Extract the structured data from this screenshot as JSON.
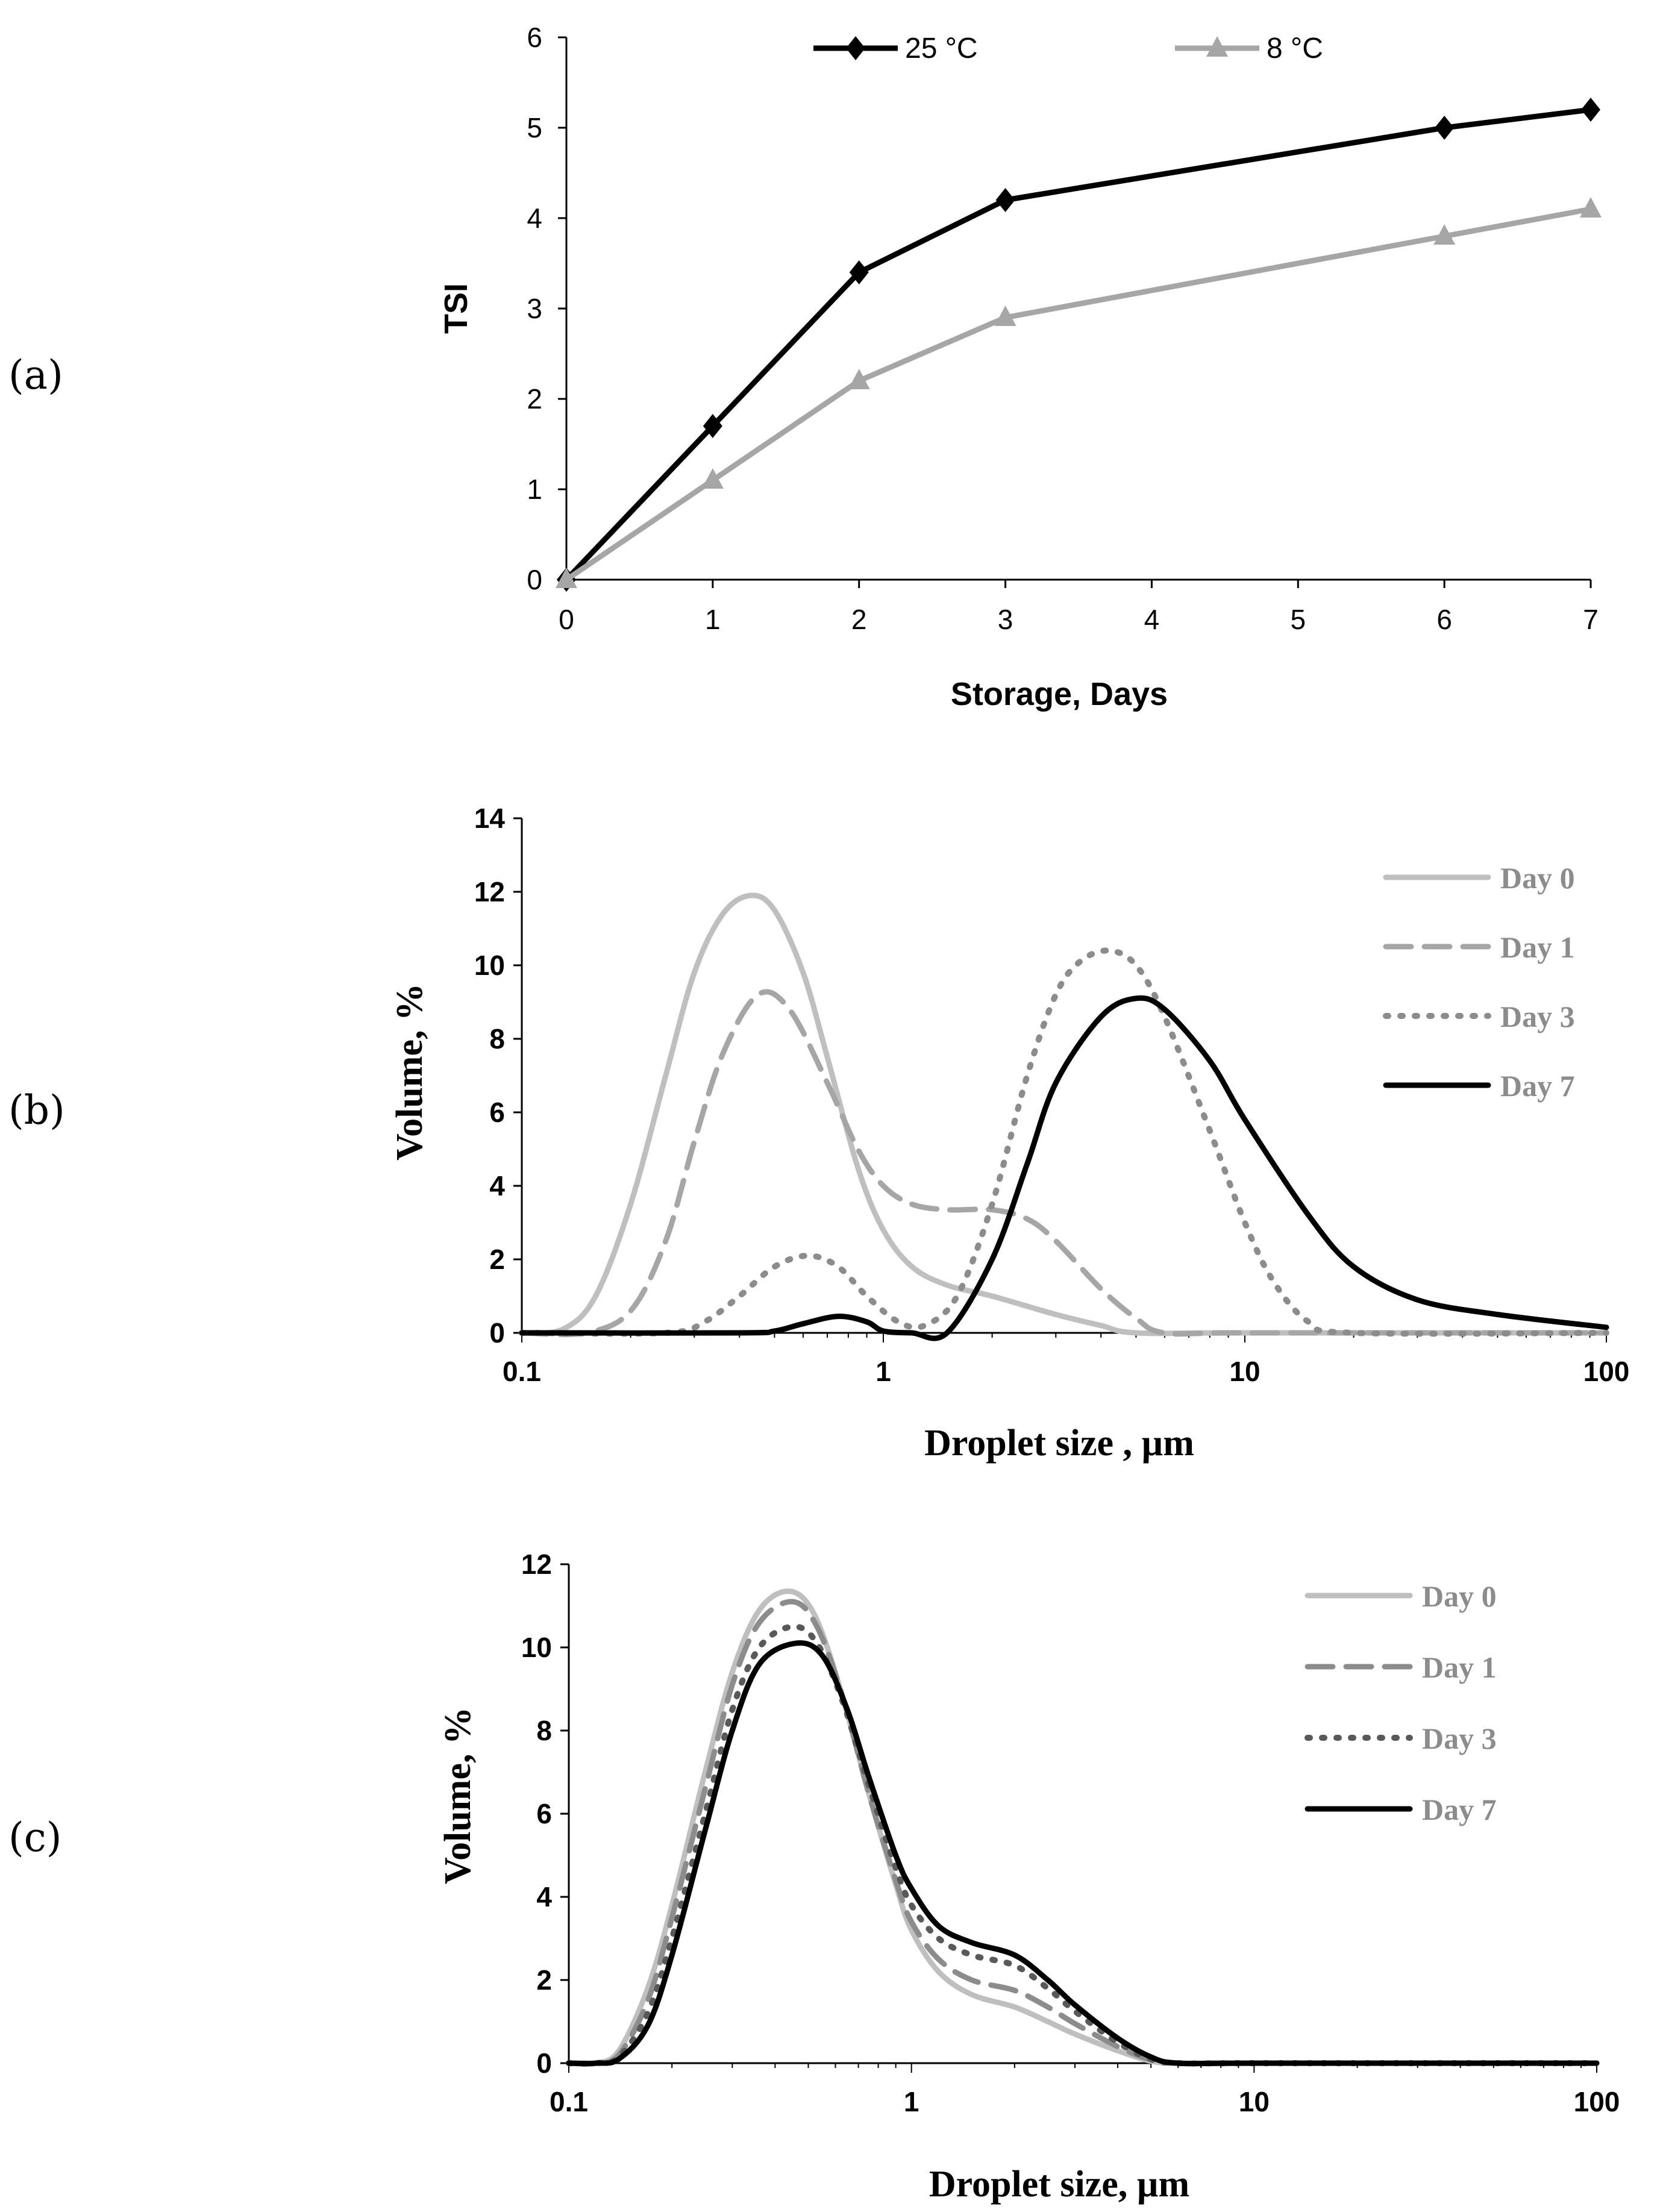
{
  "panels": [
    {
      "label": "(a)",
      "chart_data": {
        "type": "line",
        "title": "",
        "xlabel": "Storage, Days",
        "ylabel": "TSI",
        "x_ticks": [
          0,
          1,
          2,
          3,
          4,
          5,
          6,
          7
        ],
        "y_ticks": [
          0,
          1,
          2,
          3,
          4,
          5,
          6
        ],
        "ylim": [
          0,
          6
        ],
        "grid": false,
        "legend_position": "top",
        "series": [
          {
            "name": "25 °C",
            "color": "#000000",
            "marker": "diamond",
            "x": [
              0,
              1,
              2,
              3,
              6,
              7
            ],
            "y": [
              0,
              1.7,
              3.4,
              4.2,
              5.0,
              5.2
            ]
          },
          {
            "name": "8 °C",
            "color": "#a6a6a6",
            "marker": "triangle",
            "x": [
              0,
              1,
              2,
              3,
              6,
              7
            ],
            "y": [
              0,
              1.1,
              2.2,
              2.9,
              3.8,
              4.1
            ]
          }
        ]
      }
    },
    {
      "label": "(b)",
      "chart_data": {
        "type": "line",
        "title": "",
        "xlabel": "Droplet size , µm",
        "ylabel": "Volume, %",
        "x_scale": "log",
        "x_ticks": [
          "0.1",
          "1",
          "10",
          "100"
        ],
        "xlim": [
          0.1,
          100
        ],
        "y_ticks": [
          0,
          2,
          4,
          6,
          8,
          10,
          12,
          14
        ],
        "ylim": [
          0,
          14
        ],
        "grid": false,
        "legend_position": "top-right",
        "series": [
          {
            "name": "Day 0",
            "color": "#bfbfbf",
            "dash": "solid",
            "x": [
              0.1,
              0.13,
              0.16,
              0.2,
              0.25,
              0.3,
              0.36,
              0.43,
              0.5,
              0.6,
              0.7,
              0.85,
              1,
              1.2,
              1.5,
              2,
              3,
              4,
              5,
              10,
              100
            ],
            "y": [
              0,
              0.1,
              1.0,
              3.5,
              7.0,
              9.8,
              11.4,
              11.9,
              11.5,
              9.8,
              7.5,
              4.5,
              2.8,
              1.8,
              1.3,
              1.0,
              0.5,
              0.2,
              0,
              0,
              0
            ]
          },
          {
            "name": "Day 1",
            "color": "#a6a6a6",
            "dash": "dashed",
            "x": [
              0.1,
              0.15,
              0.2,
              0.25,
              0.3,
              0.36,
              0.45,
              0.55,
              0.7,
              0.85,
              1,
              1.2,
              1.5,
              2,
              2.5,
              3,
              4,
              5,
              6,
              10,
              100
            ],
            "y": [
              0,
              0,
              0.6,
              2.5,
              5.2,
              7.6,
              9.2,
              8.8,
              6.8,
              5.0,
              4.0,
              3.5,
              3.35,
              3.35,
              3.1,
              2.5,
              1.2,
              0.4,
              0,
              0,
              0
            ]
          },
          {
            "name": "Day 3",
            "color": "#8c8c8c",
            "dash": "dotted",
            "x": [
              0.1,
              0.25,
              0.32,
              0.4,
              0.5,
              0.62,
              0.75,
              0.9,
              1.1,
              1.3,
              1.6,
              2,
              2.5,
              3,
              3.5,
              4.2,
              5,
              6,
              8,
              10,
              12,
              15,
              20,
              100
            ],
            "y": [
              0,
              0,
              0.3,
              1.0,
              1.8,
              2.1,
              1.8,
              1.0,
              0.3,
              0.2,
              1.0,
              3.5,
              7.0,
              9.2,
              10.1,
              10.4,
              10.0,
              8.6,
              5.5,
              3.0,
              1.4,
              0.3,
              0,
              0
            ]
          },
          {
            "name": "Day 7",
            "color": "#000000",
            "dash": "solid",
            "x": [
              0.1,
              0.4,
              0.5,
              0.6,
              0.75,
              0.9,
              1.0,
              1.2,
              1.5,
              2,
              2.5,
              3,
              4,
              5,
              6,
              8,
              10,
              15,
              20,
              30,
              50,
              100
            ],
            "y": [
              0,
              0,
              0.05,
              0.25,
              0.45,
              0.3,
              0.05,
              0,
              0,
              2.0,
              4.6,
              6.8,
              8.6,
              9.1,
              8.8,
              7.4,
              5.8,
              3.2,
              1.8,
              0.9,
              0.5,
              0.15
            ]
          }
        ]
      }
    },
    {
      "label": "(c)",
      "chart_data": {
        "type": "line",
        "title": "",
        "xlabel": "Droplet size, µm",
        "ylabel": "Volume, %",
        "x_scale": "log",
        "x_ticks": [
          "0.1",
          "1",
          "10",
          "100"
        ],
        "xlim": [
          0.1,
          100
        ],
        "y_ticks": [
          0,
          2,
          4,
          6,
          8,
          10,
          12
        ],
        "ylim": [
          0,
          12
        ],
        "grid": false,
        "legend_position": "top-right",
        "series": [
          {
            "name": "Day 0",
            "color": "#bfbfbf",
            "dash": "solid",
            "x": [
              0.1,
              0.12,
              0.14,
              0.17,
              0.2,
              0.25,
              0.3,
              0.36,
              0.44,
              0.52,
              0.62,
              0.75,
              0.9,
              1.0,
              1.2,
              1.5,
              2,
              2.5,
              3,
              4,
              5,
              6,
              10,
              100
            ],
            "y": [
              0,
              0,
              0.3,
              1.8,
              3.8,
              7.0,
              9.4,
              10.9,
              11.35,
              10.8,
              9.0,
              6.5,
              4.3,
              3.2,
              2.2,
              1.65,
              1.35,
              1.0,
              0.7,
              0.3,
              0.05,
              0,
              0,
              0
            ]
          },
          {
            "name": "Day 1",
            "color": "#8c8c8c",
            "dash": "dashed",
            "x": [
              0.1,
              0.12,
              0.14,
              0.17,
              0.2,
              0.25,
              0.3,
              0.36,
              0.45,
              0.53,
              0.63,
              0.75,
              0.9,
              1.0,
              1.2,
              1.5,
              2,
              2.5,
              3,
              4,
              5,
              6,
              10,
              100
            ],
            "y": [
              0,
              0,
              0.2,
              1.5,
              3.5,
              6.6,
              9.1,
              10.6,
              11.1,
              10.5,
              8.8,
              6.5,
              4.4,
              3.4,
              2.5,
              2.0,
              1.75,
              1.35,
              0.95,
              0.4,
              0.08,
              0,
              0,
              0
            ]
          },
          {
            "name": "Day 3",
            "color": "#595959",
            "dash": "dotted",
            "x": [
              0.1,
              0.12,
              0.14,
              0.17,
              0.2,
              0.25,
              0.3,
              0.36,
              0.45,
              0.53,
              0.63,
              0.75,
              0.9,
              1.0,
              1.2,
              1.5,
              2,
              2.5,
              3,
              4,
              5,
              6,
              10,
              100
            ],
            "y": [
              0,
              0,
              0.15,
              1.2,
              3.0,
              6.0,
              8.5,
              10.0,
              10.5,
              10.1,
              8.7,
              6.7,
              4.7,
              3.8,
              3.0,
              2.6,
              2.35,
              1.8,
              1.25,
              0.5,
              0.1,
              0,
              0,
              0
            ]
          },
          {
            "name": "Day 7",
            "color": "#000000",
            "dash": "solid",
            "x": [
              0.1,
              0.12,
              0.14,
              0.17,
              0.2,
              0.25,
              0.3,
              0.36,
              0.46,
              0.55,
              0.65,
              0.75,
              0.9,
              1.0,
              1.2,
              1.5,
              2,
              2.5,
              3,
              4,
              5,
              6,
              10,
              100
            ],
            "y": [
              0,
              0,
              0.1,
              0.9,
              2.6,
              5.6,
              8.0,
              9.6,
              10.1,
              9.8,
              8.5,
              6.9,
              5.0,
              4.2,
              3.3,
              2.9,
              2.6,
              2.0,
              1.4,
              0.6,
              0.15,
              0,
              0,
              0
            ]
          }
        ]
      }
    }
  ]
}
